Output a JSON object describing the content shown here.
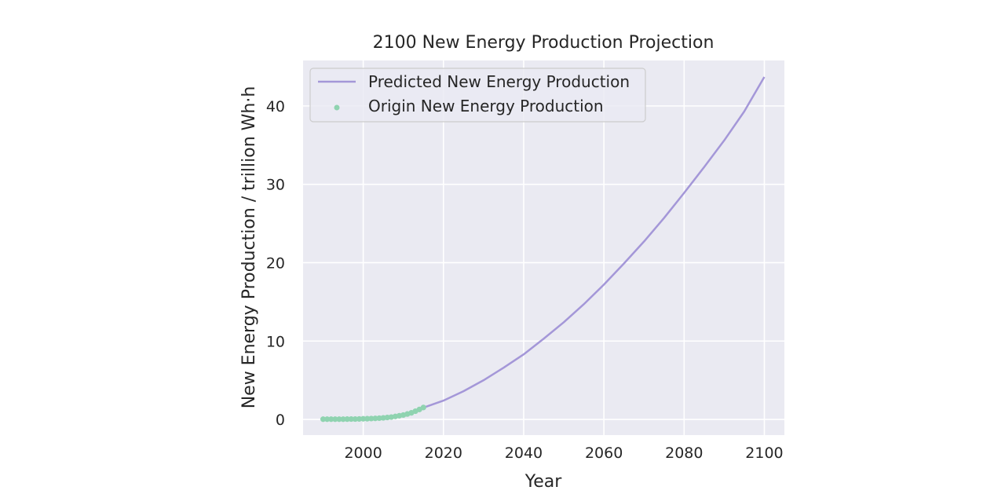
{
  "chart_data": {
    "type": "line",
    "title": "2100 New Energy Production Projection",
    "xlabel": "Year",
    "ylabel": "New Energy Production / trillion Wh·h",
    "xlim": [
      1985,
      2105
    ],
    "ylim": [
      -2,
      45.8
    ],
    "xticks": [
      2000,
      2020,
      2040,
      2060,
      2080,
      2100
    ],
    "yticks": [
      0,
      10,
      20,
      30,
      40
    ],
    "grid": true,
    "legend_position": "upper left",
    "colors": {
      "background": "#eaeaf2",
      "grid": "#ffffff",
      "predicted": "#a497d8",
      "origin": "#8fd3b0"
    },
    "series": [
      {
        "name": "Predicted New Energy Production",
        "kind": "line",
        "x": [
          2015,
          2020,
          2025,
          2030,
          2035,
          2040,
          2045,
          2050,
          2055,
          2060,
          2065,
          2070,
          2075,
          2080,
          2085,
          2090,
          2095,
          2100
        ],
        "y": [
          1.5,
          2.4,
          3.6,
          5.0,
          6.6,
          8.3,
          10.3,
          12.4,
          14.7,
          17.2,
          19.9,
          22.7,
          25.7,
          28.9,
          32.2,
          35.6,
          39.3,
          43.7
        ]
      },
      {
        "name": "Origin New Energy Production",
        "kind": "scatter",
        "x": [
          1990,
          1991,
          1992,
          1993,
          1994,
          1995,
          1996,
          1997,
          1998,
          1999,
          2000,
          2001,
          2002,
          2003,
          2004,
          2005,
          2006,
          2007,
          2008,
          2009,
          2010,
          2011,
          2012,
          2013,
          2014,
          2015
        ],
        "y": [
          0.03,
          0.03,
          0.03,
          0.03,
          0.03,
          0.03,
          0.04,
          0.05,
          0.05,
          0.06,
          0.08,
          0.09,
          0.11,
          0.13,
          0.16,
          0.2,
          0.25,
          0.3,
          0.38,
          0.47,
          0.56,
          0.69,
          0.84,
          1.05,
          1.27,
          1.52
        ]
      }
    ]
  }
}
